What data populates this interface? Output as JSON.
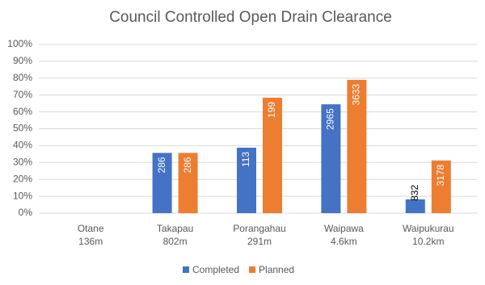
{
  "chart_data": {
    "type": "bar",
    "title": "Council Controlled Open Drain Clearance",
    "categories": [
      [
        "Otane",
        "136m"
      ],
      [
        "Takapau",
        "802m"
      ],
      [
        "Porangahau",
        "291m"
      ],
      [
        "Waipawa",
        "4.6km"
      ],
      [
        "Waipukurau",
        "10.2km"
      ]
    ],
    "series": [
      {
        "name": "Completed",
        "color": "#4472c4",
        "values": [
          null,
          35.7,
          38.8,
          64.5,
          8.2
        ],
        "value_labels": [
          null,
          "286",
          "113",
          "2965",
          "832"
        ]
      },
      {
        "name": "Planned",
        "color": "#ed7d31",
        "values": [
          null,
          35.7,
          68.4,
          79,
          31.2
        ],
        "value_labels": [
          null,
          "286",
          "199",
          "3633",
          "3178"
        ]
      }
    ],
    "ylim": [
      0,
      100
    ],
    "yticks": [
      {
        "value": 0,
        "label": "0%"
      },
      {
        "value": 10,
        "label": "10%"
      },
      {
        "value": 20,
        "label": "20%"
      },
      {
        "value": 30,
        "label": "30%"
      },
      {
        "value": 40,
        "label": "40%"
      },
      {
        "value": 50,
        "label": "50%"
      },
      {
        "value": 60,
        "label": "60%"
      },
      {
        "value": 70,
        "label": "70%"
      },
      {
        "value": 80,
        "label": "80%"
      },
      {
        "value": 90,
        "label": "90%"
      },
      {
        "value": 100,
        "label": "100%"
      }
    ],
    "grid": true,
    "legend": "bottom"
  }
}
